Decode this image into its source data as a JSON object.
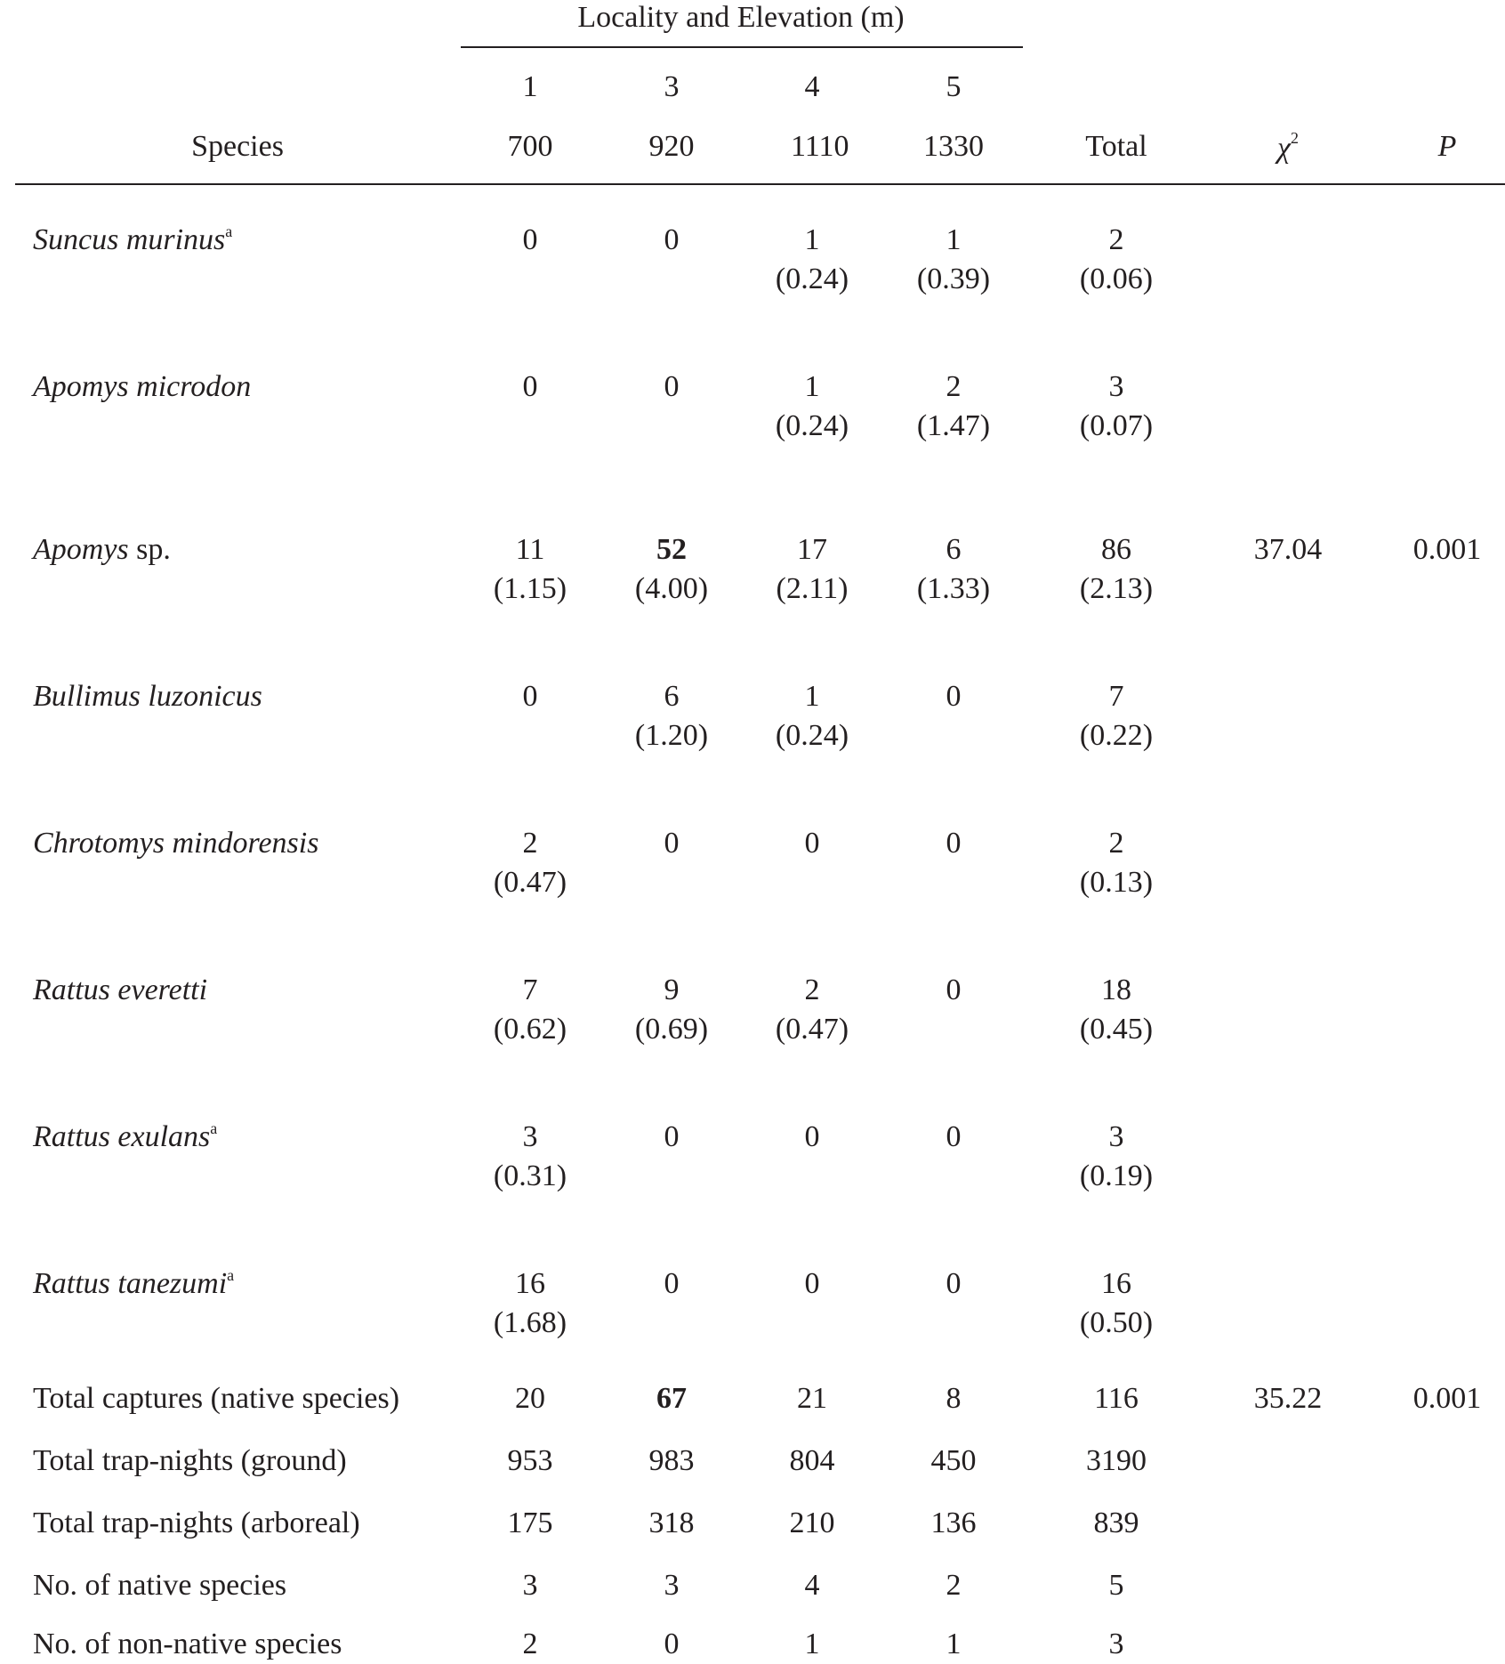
{
  "header": {
    "spanner": "Locality and Elevation (m)",
    "species_label": "Species",
    "localities": [
      "1",
      "3",
      "4",
      "5"
    ],
    "elevations": [
      "700",
      "920",
      "1110",
      "1330"
    ],
    "total_label": "Total",
    "chi_label": "χ",
    "chi_sup": "2",
    "p_label": "P"
  },
  "species_rows": [
    {
      "name": "Suncus murinus",
      "sup": "a",
      "counts": [
        "0",
        "0",
        "1",
        "1",
        "2"
      ],
      "rates": [
        "",
        "",
        "(0.24)",
        "(0.39)",
        "(0.06)"
      ],
      "chi": "",
      "p": "",
      "bold_index": -1
    },
    {
      "name": "Apomys microdon",
      "sup": "",
      "counts": [
        "0",
        "0",
        "1",
        "2",
        "3"
      ],
      "rates": [
        "",
        "",
        "(0.24)",
        "(1.47)",
        "(0.07)"
      ],
      "chi": "",
      "p": "",
      "bold_index": -1
    },
    {
      "name": "Apomys",
      "name_suffix": " sp.",
      "sup": "",
      "counts": [
        "11",
        "52",
        "17",
        "6",
        "86"
      ],
      "rates": [
        "(1.15)",
        "(4.00)",
        "(2.11)",
        "(1.33)",
        "(2.13)"
      ],
      "chi": "37.04",
      "p": "0.001",
      "bold_index": 1
    },
    {
      "name": "Bullimus luzonicus",
      "sup": "",
      "counts": [
        "0",
        "6",
        "1",
        "0",
        "7"
      ],
      "rates": [
        "",
        "(1.20)",
        "(0.24)",
        "",
        "(0.22)"
      ],
      "chi": "",
      "p": "",
      "bold_index": -1
    },
    {
      "name": "Chrotomys mindorensis",
      "sup": "",
      "counts": [
        "2",
        "0",
        "0",
        "0",
        "2"
      ],
      "rates": [
        "(0.47)",
        "",
        "",
        "",
        "(0.13)"
      ],
      "chi": "",
      "p": "",
      "bold_index": -1
    },
    {
      "name": "Rattus everetti",
      "sup": "",
      "counts": [
        "7",
        "9",
        "2",
        "0",
        "18"
      ],
      "rates": [
        "(0.62)",
        "(0.69)",
        "(0.47)",
        "",
        "(0.45)"
      ],
      "chi": "",
      "p": "",
      "bold_index": -1
    },
    {
      "name": "Rattus exulans",
      "sup": "a",
      "counts": [
        "3",
        "0",
        "0",
        "0",
        "3"
      ],
      "rates": [
        "(0.31)",
        "",
        "",
        "",
        "(0.19)"
      ],
      "chi": "",
      "p": "",
      "bold_index": -1
    },
    {
      "name": "Rattus tanezumi",
      "sup": "a",
      "counts": [
        "16",
        "0",
        "0",
        "0",
        "16"
      ],
      "rates": [
        "(1.68)",
        "",
        "",
        "",
        "(0.50)"
      ],
      "chi": "",
      "p": "",
      "bold_index": -1
    }
  ],
  "summary_rows": [
    {
      "label": "Total captures (native species)",
      "values": [
        "20",
        "67",
        "21",
        "8",
        "116"
      ],
      "chi": "35.22",
      "p": "0.001",
      "bold_index": 1
    },
    {
      "label": "Total trap-nights (ground)",
      "values": [
        "953",
        "983",
        "804",
        "450",
        "3190"
      ],
      "chi": "",
      "p": "",
      "bold_index": -1
    },
    {
      "label": "Total trap-nights (arboreal)",
      "values": [
        "175",
        "318",
        "210",
        "136",
        "839"
      ],
      "chi": "",
      "p": "",
      "bold_index": -1
    },
    {
      "label": "No. of native species",
      "values": [
        "3",
        "3",
        "4",
        "2",
        "5"
      ],
      "chi": "",
      "p": "",
      "bold_index": -1
    },
    {
      "label": "No. of non-native species",
      "values": [
        "2",
        "0",
        "1",
        "1",
        "3"
      ],
      "chi": "",
      "p": "",
      "bold_index": -1
    }
  ]
}
